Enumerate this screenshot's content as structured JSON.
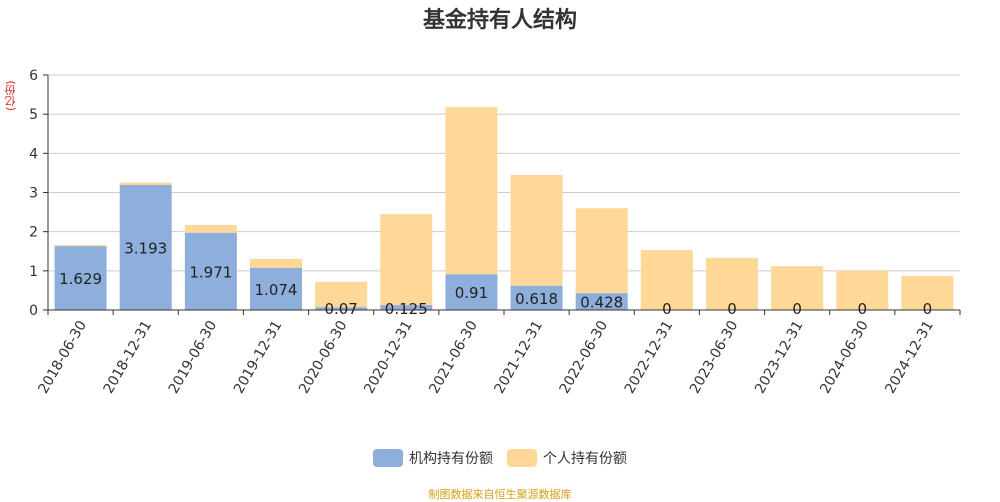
{
  "chart_data": {
    "type": "bar",
    "stacked": true,
    "title": "基金持有人结构",
    "ylabel": "(亿份)",
    "ylim": [
      0,
      6
    ],
    "yticks": [
      0,
      1,
      2,
      3,
      4,
      5,
      6
    ],
    "grid": true,
    "categories": [
      "2018-06-30",
      "2018-12-31",
      "2019-06-30",
      "2019-12-31",
      "2020-06-30",
      "2020-12-31",
      "2021-06-30",
      "2021-12-31",
      "2022-06-30",
      "2022-12-31",
      "2023-06-30",
      "2023-12-31",
      "2024-06-30",
      "2024-12-31"
    ],
    "series": [
      {
        "name": "机构持有份额",
        "color": "#8EAEDB",
        "values": [
          1.629,
          3.193,
          1.971,
          1.074,
          0.07,
          0.125,
          0.91,
          0.618,
          0.428,
          0,
          0,
          0,
          0,
          0
        ],
        "labels": [
          "1.629",
          "3.193",
          "1.971",
          "1.074",
          "0.07",
          "0.125",
          "0.91",
          "0.618",
          "0.428",
          "0",
          "0",
          "0",
          "0",
          "0"
        ]
      },
      {
        "name": "个人持有份额",
        "color": "#FFD898",
        "values": [
          0.03,
          0.06,
          0.2,
          0.23,
          0.65,
          2.32,
          4.27,
          2.83,
          2.17,
          1.53,
          1.33,
          1.12,
          1.0,
          0.87
        ]
      }
    ],
    "legend_position": "bottom-center"
  },
  "footer": {
    "source": "制图数据来自恒生聚源数据库"
  }
}
